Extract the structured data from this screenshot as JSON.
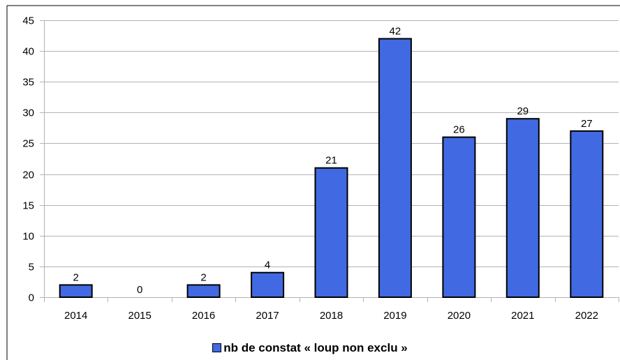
{
  "chart_data": {
    "type": "bar",
    "categories": [
      "2014",
      "2015",
      "2016",
      "2017",
      "2018",
      "2019",
      "2020",
      "2021",
      "2022"
    ],
    "series": [
      {
        "name": "nb de constat « loup non exclu »",
        "values": [
          2,
          0,
          2,
          4,
          21,
          42,
          26,
          29,
          27
        ]
      }
    ],
    "title": "",
    "xlabel": "",
    "ylabel": "",
    "ylim": [
      0,
      45
    ],
    "y_ticks": [
      "0",
      "5",
      "10",
      "15",
      "20",
      "25",
      "30",
      "35",
      "40",
      "45"
    ],
    "grid": true,
    "legend": "bottom",
    "bar_color": "#4169e1",
    "grid_color": "#b3b3b3"
  }
}
